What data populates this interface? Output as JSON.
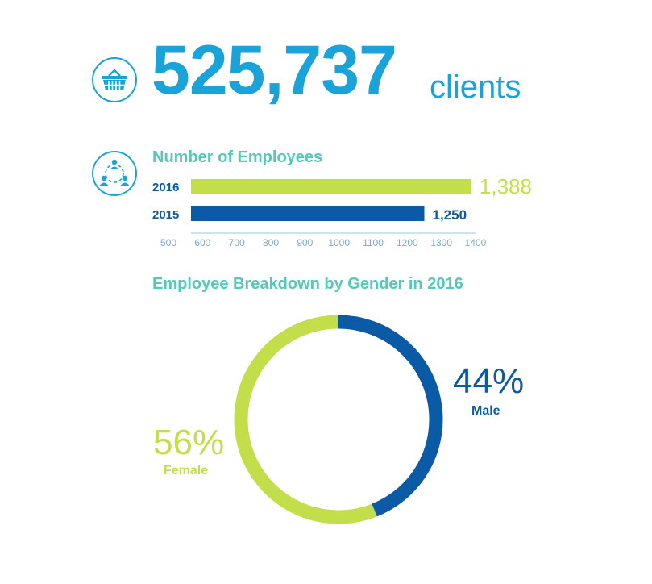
{
  "headline": {
    "number": "525,737",
    "unit": "clients",
    "icon": "shopping-basket-icon"
  },
  "colors": {
    "accent_blue": "#1aa3d8",
    "teal": "#52c9b9",
    "lime": "#c2de4a",
    "navy": "#0b5aa5",
    "axis": "#9ec7e4"
  },
  "chart_data": [
    {
      "type": "bar",
      "orientation": "horizontal",
      "title": "Number of Employees",
      "icon": "people-network-icon",
      "categories": [
        "2016",
        "2015"
      ],
      "values": [
        1388,
        1250
      ],
      "value_labels": [
        "1,388",
        "1,250"
      ],
      "bar_colors": [
        "#c2de4a",
        "#0b5aa5"
      ],
      "xlim": [
        500,
        1400
      ],
      "xticks": [
        "500",
        "600",
        "700",
        "800",
        "900",
        "1000",
        "1100",
        "1200",
        "1300",
        "1400"
      ],
      "grid": false
    },
    {
      "type": "pie",
      "style": "donut",
      "title": "Employee Breakdown by Gender in 2016",
      "slices": [
        {
          "label": "Male",
          "value": 44,
          "value_label": "44%",
          "color": "#0b5aa5"
        },
        {
          "label": "Female",
          "value": 56,
          "value_label": "56%",
          "color": "#c2de4a"
        }
      ]
    }
  ]
}
